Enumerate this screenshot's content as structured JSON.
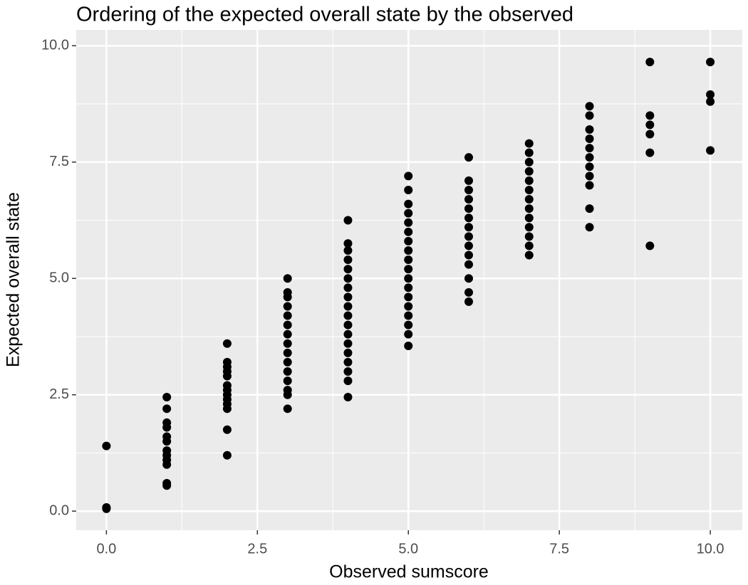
{
  "chart_data": {
    "type": "scatter",
    "title": "Ordering of the expected overall state by the observed",
    "x_label": "Observed sumscore",
    "y_label": "Expected overall state",
    "color": "#000000",
    "grid": true,
    "xlim": [
      -0.5,
      10.53
    ],
    "ylim": [
      -0.41,
      10.34
    ],
    "xticks": [
      {
        "value": 0,
        "label": "0.0"
      },
      2.5,
      {
        "value": 5,
        "label": "5.0"
      },
      7.5,
      {
        "value": 10,
        "label": "10.0"
      }
    ],
    "yticks": [
      {
        "value": 0,
        "label": "0.0"
      },
      2.5,
      {
        "value": 5,
        "label": "5.0"
      },
      7.5,
      {
        "value": 10,
        "label": "10.0"
      }
    ],
    "minor_xticks": [
      1.25,
      3.75,
      6.25,
      8.75
    ],
    "minor_yticks": [
      1.25,
      3.75,
      6.25,
      8.75
    ],
    "x": [
      0,
      0,
      0,
      1,
      1,
      1,
      1,
      1,
      1,
      1,
      1,
      1,
      1,
      1,
      1,
      2,
      2,
      2,
      2,
      2,
      2,
      2,
      2,
      2,
      2,
      2,
      2,
      2,
      3,
      3,
      3,
      3,
      3,
      3,
      3,
      3,
      3,
      3,
      3,
      3,
      3,
      3,
      3,
      4,
      4,
      4,
      4,
      4,
      4,
      4,
      4,
      4,
      4,
      4,
      4,
      4,
      4,
      4,
      4,
      4,
      4,
      5,
      5,
      5,
      5,
      5,
      5,
      5,
      5,
      5,
      5,
      5,
      5,
      5,
      5,
      5,
      5,
      5,
      5,
      6,
      6,
      6,
      6,
      6,
      6,
      6,
      6,
      6,
      6,
      6,
      6,
      6,
      6,
      7,
      7,
      7,
      7,
      7,
      7,
      7,
      7,
      7,
      7,
      7,
      7,
      7,
      8,
      8,
      8,
      8,
      8,
      8,
      8,
      8,
      8,
      8,
      8,
      9,
      9,
      9,
      9,
      9,
      9,
      10,
      10,
      10,
      10
    ],
    "y": [
      0.05,
      0.08,
      1.4,
      0.55,
      0.6,
      1.0,
      1.1,
      1.2,
      1.3,
      1.5,
      1.6,
      1.8,
      1.9,
      2.2,
      2.45,
      1.2,
      1.75,
      2.2,
      2.3,
      2.4,
      2.5,
      2.6,
      2.7,
      2.9,
      3.0,
      3.1,
      3.2,
      3.6,
      2.2,
      2.5,
      2.6,
      2.8,
      3.0,
      3.2,
      3.4,
      3.6,
      3.8,
      4.0,
      4.2,
      4.4,
      4.6,
      4.7,
      5.0,
      2.45,
      2.8,
      3.0,
      3.2,
      3.4,
      3.6,
      3.8,
      4.0,
      4.2,
      4.4,
      4.6,
      4.8,
      5.0,
      5.2,
      5.4,
      5.6,
      5.75,
      6.25,
      3.55,
      3.8,
      4.0,
      4.2,
      4.4,
      4.6,
      4.8,
      5.0,
      5.2,
      5.4,
      5.6,
      5.8,
      6.0,
      6.2,
      6.4,
      6.6,
      6.9,
      7.2,
      4.5,
      4.7,
      5.0,
      5.3,
      5.5,
      5.7,
      5.9,
      6.1,
      6.3,
      6.5,
      6.7,
      6.9,
      7.1,
      7.6,
      5.5,
      5.7,
      5.9,
      6.1,
      6.3,
      6.5,
      6.7,
      6.9,
      7.1,
      7.3,
      7.5,
      7.7,
      7.9,
      6.1,
      6.5,
      7.0,
      7.2,
      7.4,
      7.6,
      7.8,
      8.0,
      8.2,
      8.5,
      8.7,
      5.7,
      7.7,
      8.1,
      8.3,
      8.5,
      9.65,
      7.75,
      8.8,
      8.95,
      9.65
    ]
  }
}
